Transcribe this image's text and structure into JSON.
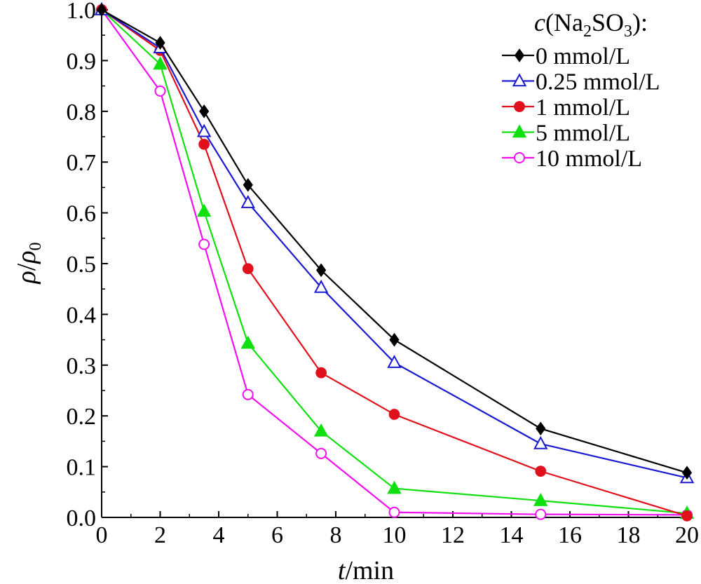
{
  "chart_data": {
    "type": "line",
    "x": [
      0,
      2,
      3.5,
      5,
      7.5,
      10,
      15,
      20
    ],
    "xlim": [
      0,
      20
    ],
    "ylim": [
      0,
      1.0
    ],
    "xticks": [
      "0",
      "2",
      "4",
      "6",
      "8",
      "10",
      "12",
      "14",
      "16",
      "18",
      "20"
    ],
    "xtick_values": [
      0,
      2,
      4,
      6,
      8,
      10,
      12,
      14,
      16,
      18,
      20
    ],
    "yticks": [
      "0.0",
      "0.1",
      "0.2",
      "0.3",
      "0.4",
      "0.5",
      "0.6",
      "0.7",
      "0.8",
      "0.9",
      "1.0"
    ],
    "ytick_values": [
      0,
      0.1,
      0.2,
      0.3,
      0.4,
      0.5,
      0.6,
      0.7,
      0.8,
      0.9,
      1.0
    ],
    "xlabel": {
      "italic": "t",
      "rest": "/min"
    },
    "ylabel": {
      "rho": "ρ",
      "slash": "/",
      "rho0": "ρ",
      "sub": "0"
    },
    "legend": {
      "title": {
        "c": "c",
        "open": "(Na",
        "s1": "2",
        "mid": "SO",
        "s2": "3",
        "close": "):"
      },
      "placement": "top-right"
    },
    "grid": false,
    "series": [
      {
        "name": "0 mmol/L",
        "color": "#000000",
        "marker": "diamond-filled",
        "values": [
          1.0,
          0.935,
          0.8,
          0.655,
          0.487,
          0.35,
          0.175,
          0.088
        ]
      },
      {
        "name": "0.25 mmol/L",
        "color": "#1a1ad0",
        "marker": "triangle-open",
        "values": [
          1.0,
          0.925,
          0.76,
          0.62,
          0.453,
          0.305,
          0.145,
          0.078
        ]
      },
      {
        "name": "1 mmol/L",
        "color": "#e0101c",
        "marker": "circle-filled",
        "values": [
          1.0,
          0.92,
          0.735,
          0.49,
          0.285,
          0.203,
          0.091,
          0.003
        ]
      },
      {
        "name": "5 mmol/L",
        "color": "#10e010",
        "marker": "triangle-filled",
        "values": [
          1.0,
          0.893,
          0.603,
          0.343,
          0.17,
          0.057,
          0.033,
          0.008
        ]
      },
      {
        "name": "10 mmol/L",
        "color": "#f010f0",
        "marker": "circle-open",
        "values": [
          1.0,
          0.84,
          0.538,
          0.242,
          0.126,
          0.01,
          0.006,
          0.005
        ]
      }
    ]
  }
}
